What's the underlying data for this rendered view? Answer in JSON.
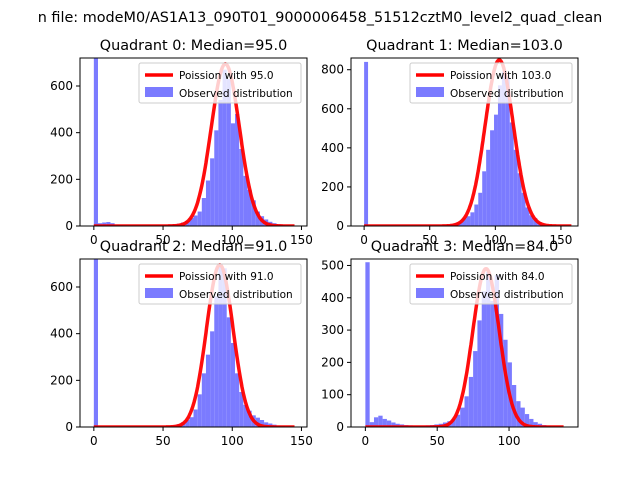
{
  "figure": {
    "suptitle": "n file: modeM0/AS1A13_090T01_9000006458_51512cztM0_level2_quad_clean"
  },
  "colors": {
    "bar": "#7b7bff",
    "fit_line": "#ff0000",
    "axes": "#000000"
  },
  "chart_data": [
    {
      "type": "bar",
      "title": "Quadrant 0: Median=95.0",
      "xlim": [
        -10,
        154
      ],
      "ylim": [
        0,
        720
      ],
      "xticks": [
        0,
        50,
        100,
        150
      ],
      "yticks": [
        0,
        200,
        400,
        600
      ],
      "legend": {
        "placement": "top-right",
        "entries": [
          "Poission with 95.0",
          "Observed distribution"
        ]
      },
      "bin_width": 3,
      "bars": [
        [
          0,
          720
        ],
        [
          3,
          12
        ],
        [
          6,
          15
        ],
        [
          9,
          17
        ],
        [
          12,
          12
        ],
        [
          15,
          6
        ],
        [
          18,
          4
        ],
        [
          21,
          3
        ],
        [
          24,
          2
        ],
        [
          27,
          2
        ],
        [
          30,
          2
        ],
        [
          33,
          2
        ],
        [
          36,
          2
        ],
        [
          39,
          3
        ],
        [
          42,
          2
        ],
        [
          45,
          3
        ],
        [
          48,
          3
        ],
        [
          51,
          4
        ],
        [
          54,
          6
        ],
        [
          57,
          8
        ],
        [
          60,
          10
        ],
        [
          63,
          15
        ],
        [
          66,
          22
        ],
        [
          69,
          34
        ],
        [
          72,
          45
        ],
        [
          75,
          62
        ],
        [
          78,
          120
        ],
        [
          81,
          195
        ],
        [
          84,
          290
        ],
        [
          87,
          410
        ],
        [
          90,
          540
        ],
        [
          93,
          670
        ],
        [
          96,
          630
        ],
        [
          99,
          440
        ],
        [
          102,
          480
        ],
        [
          105,
          330
        ],
        [
          108,
          215
        ],
        [
          111,
          155
        ],
        [
          114,
          110
        ],
        [
          117,
          62
        ],
        [
          120,
          42
        ],
        [
          123,
          28
        ],
        [
          126,
          18
        ],
        [
          129,
          12
        ],
        [
          132,
          8
        ],
        [
          135,
          5
        ],
        [
          138,
          3
        ],
        [
          141,
          2
        ],
        [
          144,
          1
        ]
      ],
      "poisson": {
        "mean": 95.0,
        "peak": 695,
        "sd": 10.2,
        "x_start": 0,
        "x_end": 145
      }
    },
    {
      "type": "bar",
      "title": "Quadrant 1: Median=103.0",
      "xlim": [
        -10,
        163
      ],
      "ylim": [
        0,
        860
      ],
      "xticks": [
        0,
        50,
        100,
        150
      ],
      "yticks": [
        0,
        200,
        400,
        600,
        800
      ],
      "legend": {
        "placement": "top-right",
        "entries": [
          "Poission with 103.0",
          "Observed distribution"
        ]
      },
      "bin_width": 3,
      "bars": [
        [
          0,
          840
        ],
        [
          3,
          2
        ],
        [
          6,
          1
        ],
        [
          9,
          1
        ],
        [
          12,
          1
        ],
        [
          15,
          1
        ],
        [
          18,
          1
        ],
        [
          21,
          1
        ],
        [
          24,
          1
        ],
        [
          27,
          1
        ],
        [
          30,
          1
        ],
        [
          33,
          1
        ],
        [
          36,
          1
        ],
        [
          39,
          1
        ],
        [
          42,
          1
        ],
        [
          45,
          1
        ],
        [
          48,
          1
        ],
        [
          51,
          2
        ],
        [
          54,
          2
        ],
        [
          57,
          3
        ],
        [
          60,
          5
        ],
        [
          63,
          8
        ],
        [
          66,
          10
        ],
        [
          69,
          15
        ],
        [
          72,
          20
        ],
        [
          75,
          40
        ],
        [
          78,
          50
        ],
        [
          81,
          70
        ],
        [
          84,
          110
        ],
        [
          87,
          170
        ],
        [
          90,
          280
        ],
        [
          93,
          390
        ],
        [
          96,
          490
        ],
        [
          99,
          570
        ],
        [
          102,
          720
        ],
        [
          105,
          790
        ],
        [
          108,
          760
        ],
        [
          111,
          530
        ],
        [
          114,
          390
        ],
        [
          117,
          270
        ],
        [
          120,
          170
        ],
        [
          123,
          95
        ],
        [
          126,
          55
        ],
        [
          129,
          40
        ],
        [
          132,
          20
        ],
        [
          135,
          10
        ],
        [
          138,
          6
        ],
        [
          141,
          4
        ],
        [
          144,
          2
        ],
        [
          147,
          1
        ],
        [
          150,
          1
        ],
        [
          153,
          1
        ],
        [
          156,
          1
        ]
      ],
      "poisson": {
        "mean": 103.0,
        "peak": 850,
        "sd": 10.8,
        "x_start": 0,
        "x_end": 158
      }
    },
    {
      "type": "bar",
      "title": "Quadrant 2: Median=91.0",
      "xlim": [
        -10,
        154
      ],
      "ylim": [
        0,
        720
      ],
      "xticks": [
        0,
        50,
        100,
        150
      ],
      "yticks": [
        0,
        200,
        400,
        600
      ],
      "legend": {
        "placement": "top-right",
        "entries": [
          "Poission with 91.0",
          "Observed distribution"
        ]
      },
      "bin_width": 3,
      "bars": [
        [
          0,
          720
        ],
        [
          3,
          2
        ],
        [
          6,
          1
        ],
        [
          9,
          1
        ],
        [
          12,
          1
        ],
        [
          15,
          1
        ],
        [
          18,
          1
        ],
        [
          21,
          1
        ],
        [
          24,
          1
        ],
        [
          27,
          1
        ],
        [
          30,
          1
        ],
        [
          33,
          1
        ],
        [
          36,
          1
        ],
        [
          39,
          1
        ],
        [
          42,
          1
        ],
        [
          45,
          1
        ],
        [
          48,
          2
        ],
        [
          51,
          3
        ],
        [
          54,
          5
        ],
        [
          57,
          8
        ],
        [
          60,
          12
        ],
        [
          63,
          20
        ],
        [
          66,
          30
        ],
        [
          69,
          42
        ],
        [
          72,
          75
        ],
        [
          75,
          140
        ],
        [
          78,
          230
        ],
        [
          81,
          310
        ],
        [
          84,
          410
        ],
        [
          87,
          560
        ],
        [
          90,
          700
        ],
        [
          93,
          680
        ],
        [
          96,
          470
        ],
        [
          99,
          360
        ],
        [
          102,
          230
        ],
        [
          105,
          150
        ],
        [
          108,
          95
        ],
        [
          111,
          70
        ],
        [
          114,
          50
        ],
        [
          117,
          40
        ],
        [
          120,
          30
        ],
        [
          123,
          20
        ],
        [
          126,
          15
        ],
        [
          129,
          10
        ],
        [
          132,
          6
        ],
        [
          135,
          4
        ],
        [
          138,
          2
        ],
        [
          141,
          1
        ],
        [
          144,
          1
        ]
      ],
      "poisson": {
        "mean": 91.0,
        "peak": 695,
        "sd": 9.6,
        "x_start": 0,
        "x_end": 145
      }
    },
    {
      "type": "bar",
      "title": "Quadrant 3: Median=84.0",
      "xlim": [
        -10,
        148
      ],
      "ylim": [
        0,
        520
      ],
      "xticks": [
        0,
        50,
        100
      ],
      "yticks": [
        0,
        100,
        200,
        300,
        400,
        500
      ],
      "legend": {
        "placement": "top-right",
        "entries": [
          "Poission with 84.0",
          "Observed distribution"
        ]
      },
      "bin_width": 3,
      "bars": [
        [
          0,
          510
        ],
        [
          3,
          15
        ],
        [
          6,
          30
        ],
        [
          9,
          35
        ],
        [
          12,
          25
        ],
        [
          15,
          20
        ],
        [
          18,
          14
        ],
        [
          21,
          10
        ],
        [
          24,
          8
        ],
        [
          27,
          6
        ],
        [
          30,
          5
        ],
        [
          33,
          4
        ],
        [
          36,
          4
        ],
        [
          39,
          4
        ],
        [
          42,
          5
        ],
        [
          45,
          6
        ],
        [
          48,
          8
        ],
        [
          51,
          10
        ],
        [
          54,
          14
        ],
        [
          57,
          18
        ],
        [
          60,
          25
        ],
        [
          63,
          38
        ],
        [
          66,
          60
        ],
        [
          69,
          95
        ],
        [
          72,
          155
        ],
        [
          75,
          235
        ],
        [
          78,
          330
        ],
        [
          81,
          420
        ],
        [
          84,
          480
        ],
        [
          87,
          390
        ],
        [
          90,
          470
        ],
        [
          93,
          350
        ],
        [
          96,
          270
        ],
        [
          99,
          200
        ],
        [
          102,
          130
        ],
        [
          105,
          80
        ],
        [
          108,
          60
        ],
        [
          111,
          40
        ],
        [
          114,
          25
        ],
        [
          117,
          15
        ],
        [
          120,
          10
        ],
        [
          123,
          6
        ],
        [
          126,
          4
        ],
        [
          129,
          2
        ],
        [
          132,
          1
        ],
        [
          135,
          1
        ]
      ],
      "poisson": {
        "mean": 84.0,
        "peak": 490,
        "sd": 9.2,
        "x_start": 0,
        "x_end": 138
      }
    }
  ]
}
